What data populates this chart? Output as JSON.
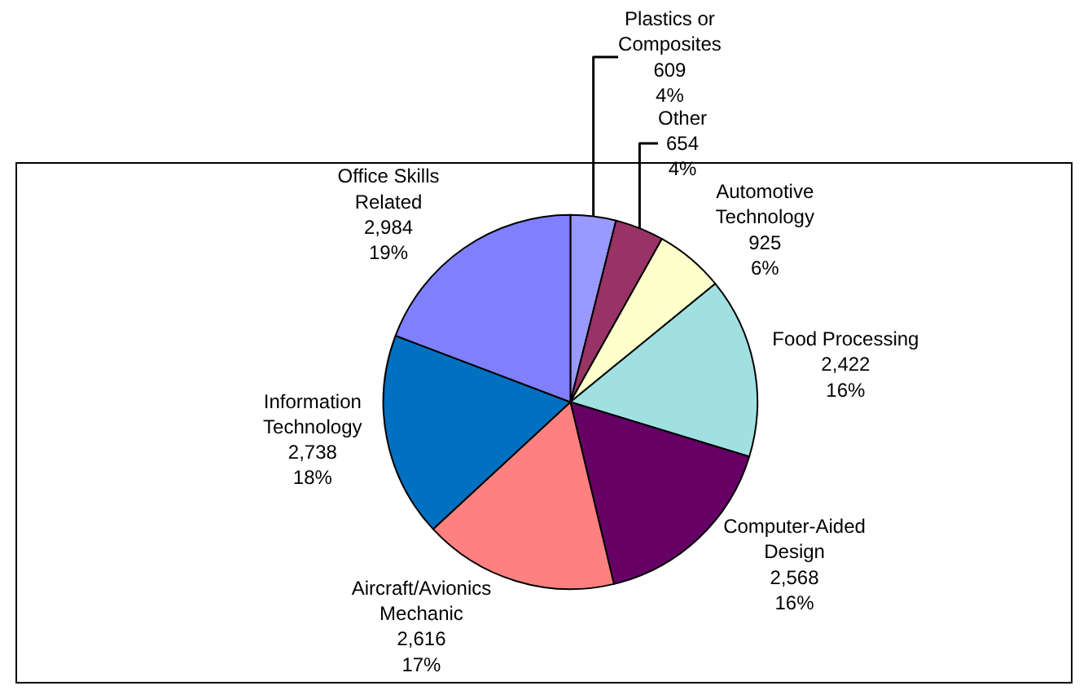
{
  "chart_data": {
    "type": "pie",
    "categories": [
      "Plastics or\nComposites",
      "Other",
      "Automotive\nTechnology",
      "Food Processing",
      "Computer-Aided\nDesign",
      "Aircraft/Avionics\nMechanic",
      "Information\nTechnology",
      "Office Skills\nRelated"
    ],
    "values": [
      609,
      654,
      925,
      2422,
      2568,
      2616,
      2738,
      2984
    ],
    "value_labels": [
      "609\n4%",
      "654\n4%",
      "925\n6%",
      "2,422\n16%",
      "2,568\n16%",
      "2,616\n17%",
      "2,738\n18%",
      "2,984\n19%"
    ],
    "colors": [
      "#9999ff",
      "#993366",
      "#ffffcc",
      "#a0e0e0",
      "#660066",
      "#ff8080",
      "#0070c0",
      "#8080ff"
    ],
    "legend": false
  }
}
